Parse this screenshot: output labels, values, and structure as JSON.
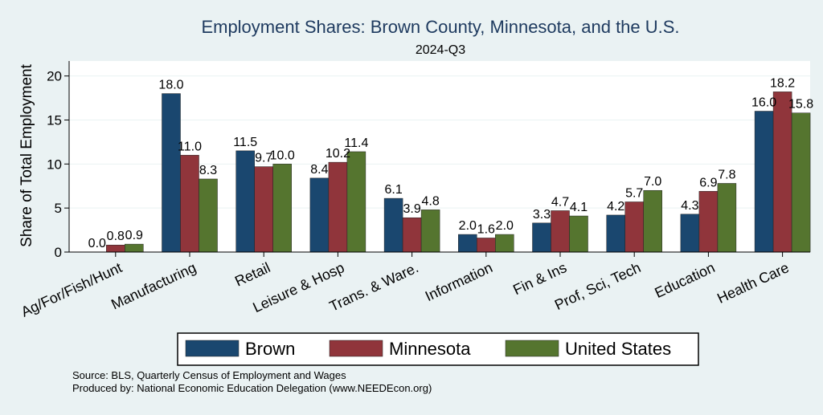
{
  "chart_data": {
    "type": "bar",
    "title": "Employment Shares: Brown County, Minnesota, and the U.S.",
    "subtitle": "2024-Q3",
    "ylabel": "Share of Total Employment",
    "xlabel": "",
    "ylim": [
      0,
      21.7
    ],
    "yticks": [
      0,
      5,
      10,
      15,
      20
    ],
    "grid": true,
    "legend": "bottom",
    "categories": [
      "Ag/For/Fish/Hunt",
      "Manufacturing",
      "Retail",
      "Leisure & Hosp",
      "Trans. & Ware.",
      "Information",
      "Fin & Ins",
      "Prof, Sci, Tech",
      "Education",
      "Health Care"
    ],
    "series": [
      {
        "name": "Brown",
        "color": "#1a476f",
        "values": [
          0.0,
          18.0,
          11.5,
          8.4,
          6.1,
          2.0,
          3.3,
          4.2,
          4.3,
          16.0
        ],
        "labels": [
          "0.0",
          "18.0",
          "11.5",
          "8.4",
          "6.1",
          "2.0",
          "3.3",
          "4.2",
          "4.3",
          "16.0"
        ]
      },
      {
        "name": "Minnesota",
        "color": "#90353b",
        "values": [
          0.8,
          11.0,
          9.7,
          10.2,
          3.9,
          1.6,
          4.7,
          5.7,
          6.9,
          18.2
        ],
        "labels": [
          "0.8",
          "11.0",
          "9.7",
          "10.2",
          "3.9",
          "1.6",
          "4.7",
          "5.7",
          "6.9",
          "18.2"
        ]
      },
      {
        "name": "United States",
        "color": "#55752f",
        "values": [
          0.9,
          8.3,
          10.0,
          11.4,
          4.8,
          2.0,
          4.1,
          7.0,
          7.8,
          15.8
        ],
        "labels": [
          "0.9",
          "8.3",
          "10.0",
          "11.4",
          "4.8",
          "2.0",
          "4.1",
          "7.0",
          "7.8",
          "15.8"
        ]
      }
    ]
  },
  "notes": {
    "source": "Source: BLS, Quarterly Census of Employment and Wages",
    "produced": "Produced by: National Economic Education Delegation (www.NEEDEcon.org)"
  }
}
